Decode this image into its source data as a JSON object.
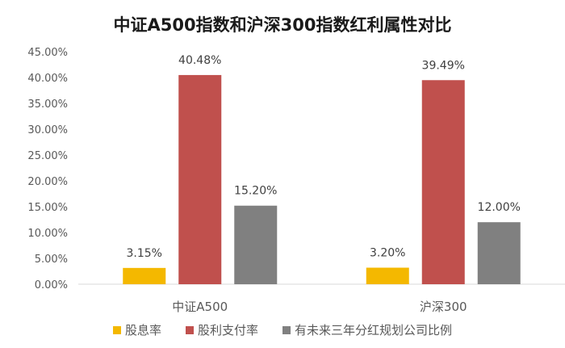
{
  "chart_data": {
    "type": "bar",
    "title": "中证A500指数和沪深300指数红利属性对比",
    "categories": [
      "中证A500",
      "沪深300"
    ],
    "series": [
      {
        "name": "股息率",
        "values": [
          3.15,
          3.2
        ],
        "labels": [
          "3.15%",
          "3.20%"
        ],
        "color": "#f4b800"
      },
      {
        "name": "股利支付率",
        "values": [
          40.48,
          39.49
        ],
        "labels": [
          "40.48%",
          "39.49%"
        ],
        "color": "#c0504d"
      },
      {
        "name": "有未来三年分红规划公司比例",
        "values": [
          15.2,
          12.0
        ],
        "labels": [
          "15.20%",
          "12.00%"
        ],
        "color": "#808080"
      }
    ],
    "ylim": [
      0,
      45
    ],
    "yticks": [
      "0.00%",
      "5.00%",
      "10.00%",
      "15.00%",
      "20.00%",
      "25.00%",
      "30.00%",
      "35.00%",
      "40.00%",
      "45.00%"
    ],
    "grid": false,
    "legend_position": "bottom"
  }
}
